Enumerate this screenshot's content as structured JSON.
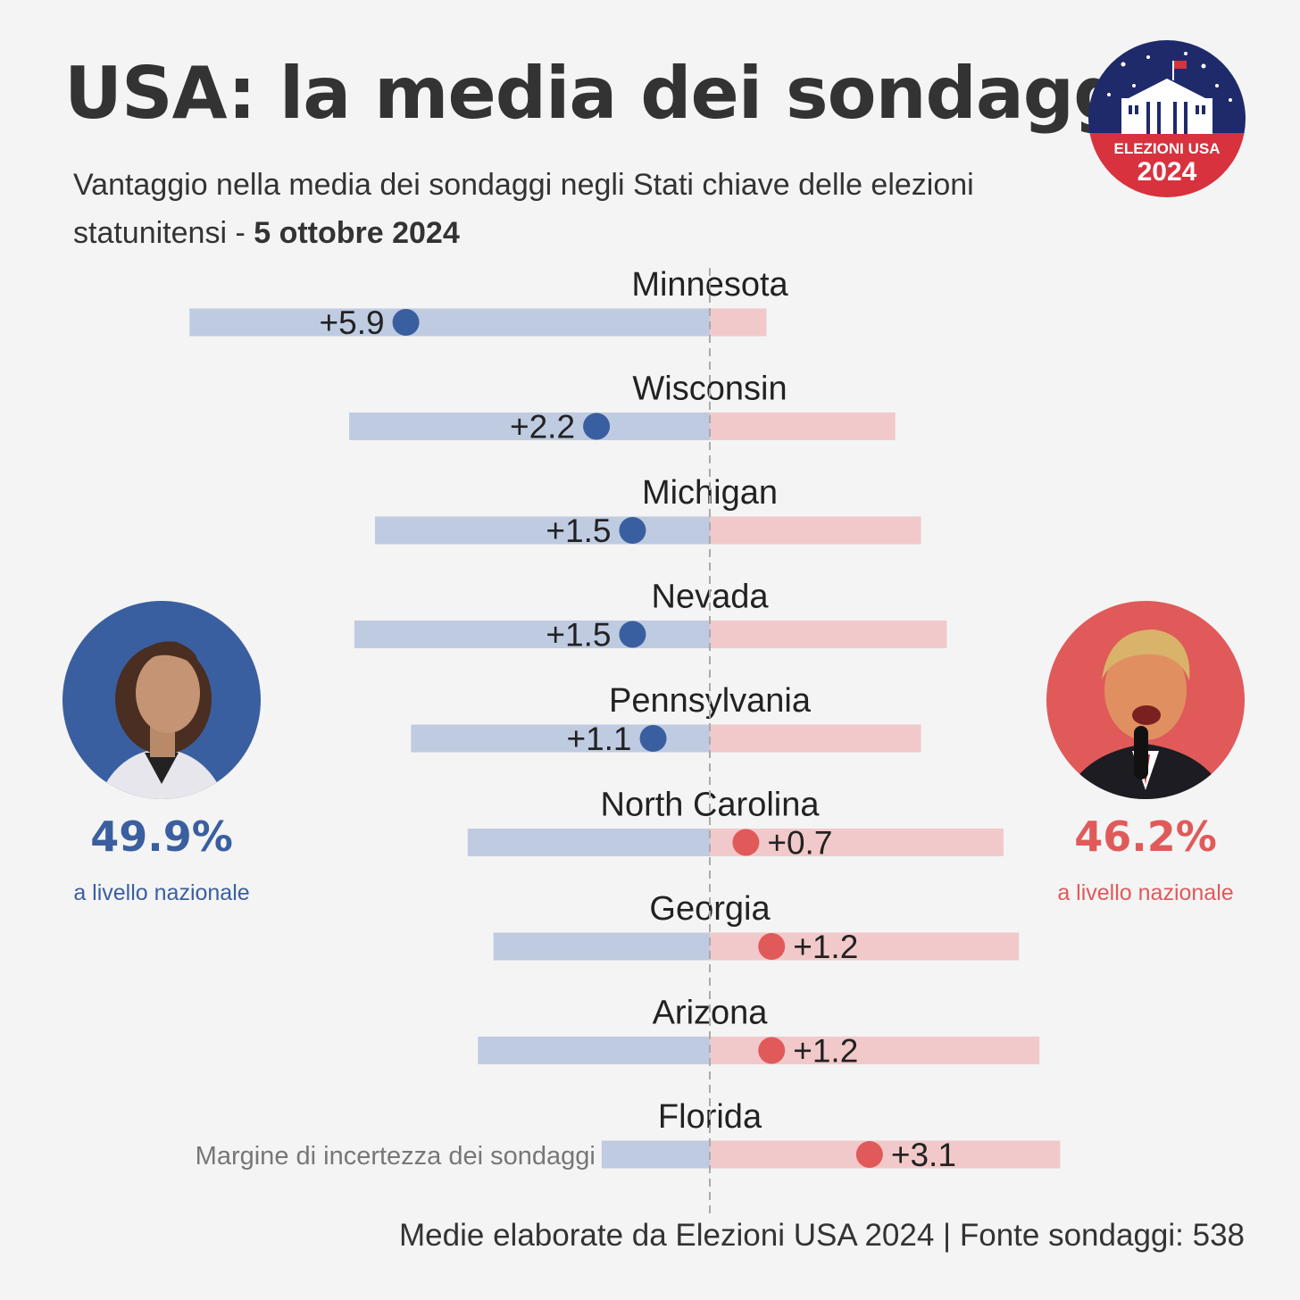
{
  "header": {
    "title": "USA: la media dei sondaggi",
    "subtitle_text": "Vantaggio nella media dei sondaggi negli Stati chiave delle elezioni statunitensi - ",
    "subtitle_date": "5 ottobre 2024"
  },
  "badge": {
    "line1": "ELEZIONI USA",
    "line2": "2024"
  },
  "candidates": {
    "harris": {
      "pct": "49.9%",
      "label": "a livello nazionale",
      "color": "#3a5fa0"
    },
    "trump": {
      "pct": "46.2%",
      "label": "a livello nazionale",
      "color": "#e05a5a"
    }
  },
  "chart_data": {
    "type": "bar",
    "title": "Vantaggio nella media dei sondaggi negli Stati chiave",
    "xlabel": "",
    "ylabel": "",
    "units": "punti percentuali",
    "uncertainty_label": "Margine di incertezza dei sondaggi",
    "colors": {
      "dem": "#3a5fa0",
      "dem_band": "#bfcbe1",
      "rep": "#e05a5a",
      "rep_band": "#f2c9ca"
    },
    "states": [
      {
        "name": "Minnesota",
        "label": "+5.9",
        "margin": 5.9,
        "leader": "dem",
        "band_dem": 10.1,
        "band_rep": 1.1
      },
      {
        "name": "Wisconsin",
        "label": "+2.2",
        "margin": 2.2,
        "leader": "dem",
        "band_dem": 7.0,
        "band_rep": 3.6
      },
      {
        "name": "Michigan",
        "label": "+1.5",
        "margin": 1.5,
        "leader": "dem",
        "band_dem": 6.5,
        "band_rep": 4.1
      },
      {
        "name": "Nevada",
        "label": "+1.5",
        "margin": 1.5,
        "leader": "dem",
        "band_dem": 6.9,
        "band_rep": 4.6
      },
      {
        "name": "Pennsylvania",
        "label": "+1.1",
        "margin": 1.1,
        "leader": "dem",
        "band_dem": 5.8,
        "band_rep": 4.1
      },
      {
        "name": "North Carolina",
        "label": "+0.7",
        "margin": 0.7,
        "leader": "rep",
        "band_dem": 4.7,
        "band_rep": 5.7
      },
      {
        "name": "Georgia",
        "label": "+1.2",
        "margin": 1.2,
        "leader": "rep",
        "band_dem": 4.2,
        "band_rep": 6.0
      },
      {
        "name": "Arizona",
        "label": "+1.2",
        "margin": 1.2,
        "leader": "rep",
        "band_dem": 4.5,
        "band_rep": 6.4
      },
      {
        "name": "Florida",
        "label": "+3.1",
        "margin": 3.1,
        "leader": "rep",
        "band_dem": 2.1,
        "band_rep": 6.8
      }
    ]
  },
  "footer": "Medie elaborate da Elezioni USA 2024 | Fonte sondaggi: 538"
}
